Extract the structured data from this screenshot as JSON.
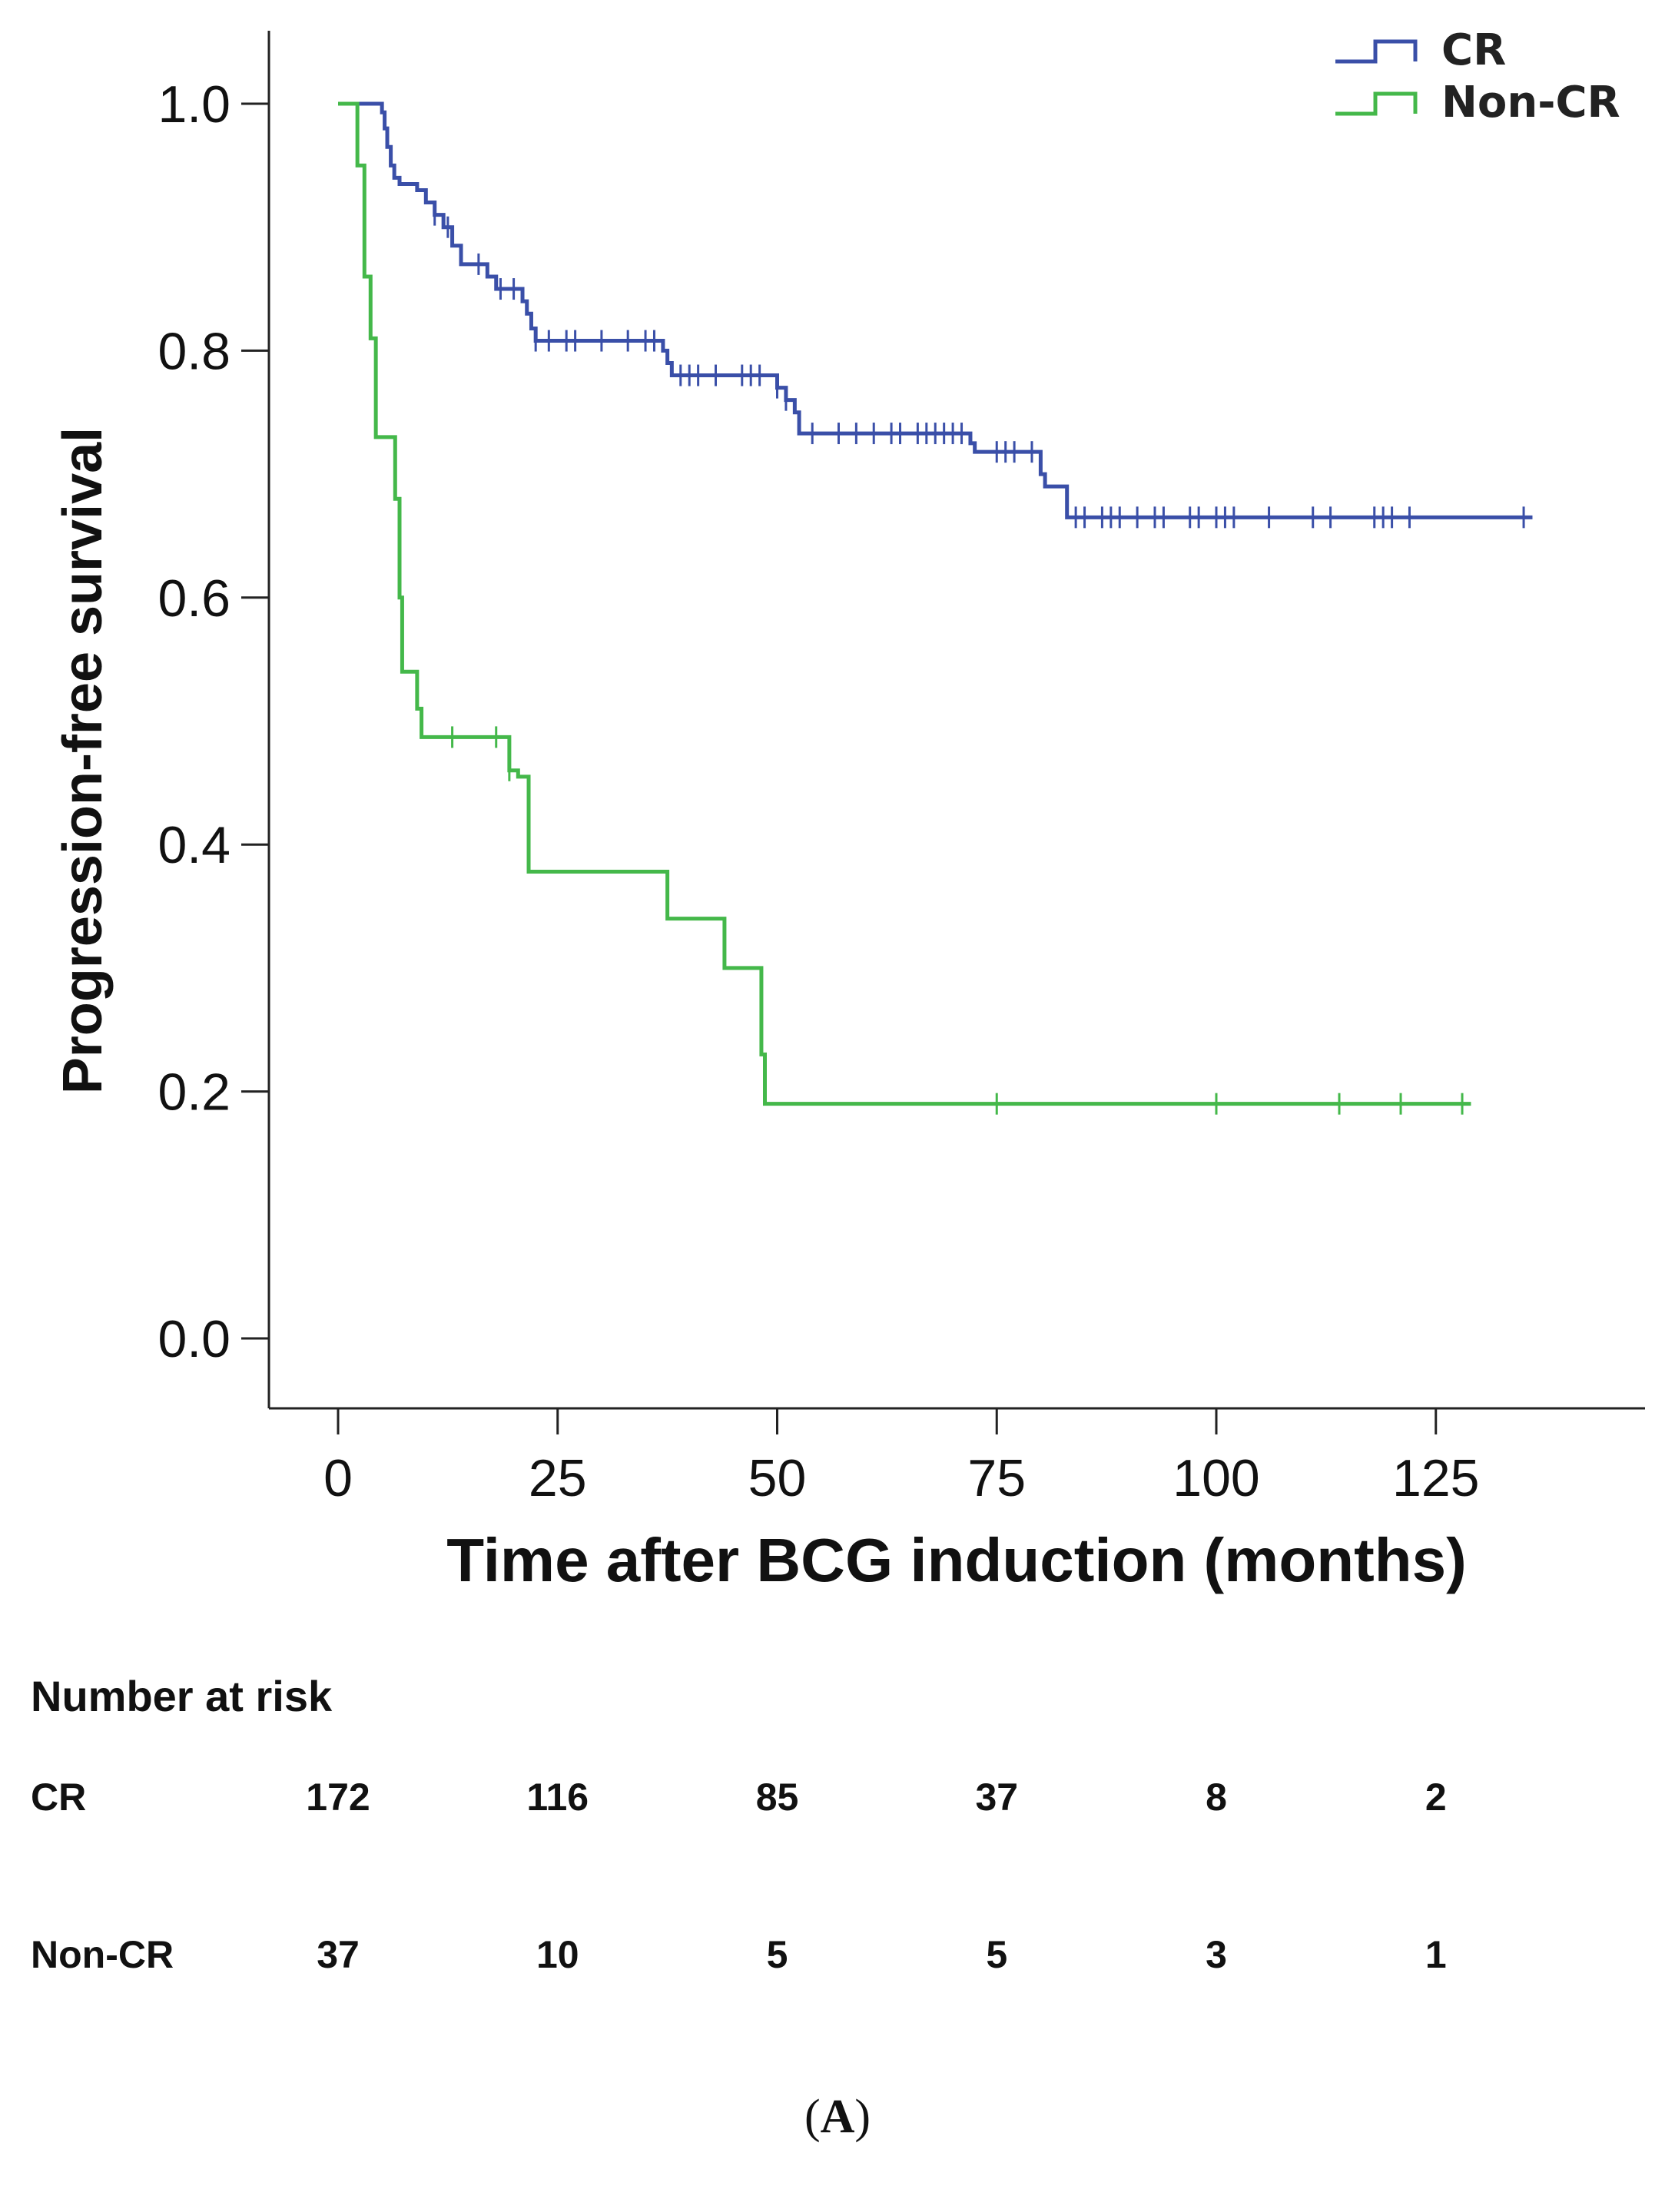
{
  "chart_data": {
    "type": "line",
    "subtype": "kaplan-meier",
    "xlabel": "Time after BCG induction (months)",
    "ylabel": "Progression-free survival",
    "xlim": [
      -8,
      147
    ],
    "ylim": [
      -0.1,
      1.1
    ],
    "xticks": [
      0,
      25,
      50,
      75,
      100,
      125
    ],
    "yticks": [
      0.0,
      0.2,
      0.4,
      0.6,
      0.8,
      1.0
    ],
    "xtick_labels": [
      "0",
      "25",
      "50",
      "75",
      "100",
      "125"
    ],
    "ytick_labels": [
      "0.0",
      "0.2",
      "0.4",
      "0.6",
      "0.8",
      "1.0"
    ],
    "legend_position": "top-right",
    "series": [
      {
        "name": "CR",
        "color": "#3a4fa8",
        "steps": [
          [
            0,
            1.0
          ],
          [
            5,
            0.993
          ],
          [
            5.3,
            0.98
          ],
          [
            5.6,
            0.965
          ],
          [
            6,
            0.95
          ],
          [
            6.4,
            0.94
          ],
          [
            7,
            0.935
          ],
          [
            9,
            0.93
          ],
          [
            10,
            0.92
          ],
          [
            11,
            0.91
          ],
          [
            12,
            0.9
          ],
          [
            13,
            0.885
          ],
          [
            14,
            0.87
          ],
          [
            17,
            0.86
          ],
          [
            18,
            0.85
          ],
          [
            21,
            0.84
          ],
          [
            21.5,
            0.83
          ],
          [
            22,
            0.818
          ],
          [
            22.5,
            0.808
          ],
          [
            37,
            0.8
          ],
          [
            37.5,
            0.79
          ],
          [
            38,
            0.78
          ],
          [
            50,
            0.77
          ],
          [
            51,
            0.76
          ],
          [
            52,
            0.75
          ],
          [
            52.5,
            0.733
          ],
          [
            72,
            0.725
          ],
          [
            72.5,
            0.718
          ],
          [
            80,
            0.7
          ],
          [
            80.5,
            0.69
          ],
          [
            83,
            0.665
          ]
        ],
        "end_x": 136,
        "censor_x": [
          11,
          12.5,
          16,
          18.5,
          20,
          22.5,
          24,
          26,
          27,
          30,
          33,
          35,
          36,
          39,
          40,
          41,
          43,
          46,
          47,
          48,
          50,
          51,
          54,
          57,
          59,
          61,
          63,
          64,
          66,
          67,
          68,
          69,
          70,
          71,
          75,
          76,
          77,
          79,
          84,
          85,
          87,
          88,
          89,
          91,
          93,
          94,
          97,
          98,
          100,
          101,
          102,
          106,
          111,
          113,
          118,
          119,
          120,
          122,
          135
        ]
      },
      {
        "name": "Non-CR",
        "color": "#44b84a",
        "steps": [
          [
            0,
            1.0
          ],
          [
            2.2,
            0.95
          ],
          [
            3,
            0.86
          ],
          [
            3.7,
            0.81
          ],
          [
            4.3,
            0.73
          ],
          [
            6.5,
            0.68
          ],
          [
            7,
            0.6
          ],
          [
            7.3,
            0.54
          ],
          [
            9,
            0.51
          ],
          [
            9.5,
            0.487
          ],
          [
            19.5,
            0.46
          ],
          [
            20.5,
            0.455
          ],
          [
            21.7,
            0.378
          ],
          [
            37.5,
            0.34
          ],
          [
            44,
            0.3
          ],
          [
            48.2,
            0.23
          ],
          [
            48.6,
            0.19
          ]
        ],
        "end_x": 129,
        "censor_x": [
          13,
          18,
          19.5,
          75,
          100,
          114,
          121,
          128
        ]
      }
    ],
    "legend": [
      "CR",
      "Non-CR"
    ]
  },
  "risk_table": {
    "title": "Number at risk",
    "rows": [
      {
        "label": "CR",
        "values": [
          "172",
          "116",
          "85",
          "37",
          "8",
          "2"
        ]
      },
      {
        "label": "Non-CR",
        "values": [
          "37",
          "10",
          "5",
          "5",
          "3",
          "1"
        ]
      }
    ]
  },
  "panel_label": "A"
}
